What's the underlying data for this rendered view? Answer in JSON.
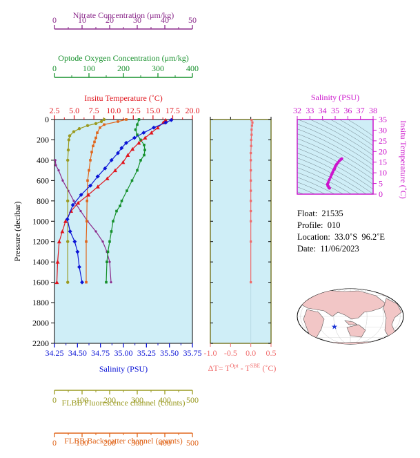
{
  "colors": {
    "nitrate": "#8b2a8b",
    "oxygen": "#15902b",
    "temperature": "#e0141c",
    "salinity": "#0b14d6",
    "fluorescence": "#9a9a20",
    "backscatter": "#e0661c",
    "ts_axis": "#cc14cc",
    "dt": "#f06b6b",
    "panel_bg": "#cfeef7",
    "map_land": "#f2c6c6",
    "map_ocean": "#ffffff"
  },
  "float_info": {
    "float": "Float:  21535",
    "profile": "Profile:  010",
    "location": "Location:  33.0˚S  96.2˚E",
    "date": "Date:  11/06/2023"
  },
  "chart_data": [
    {
      "type": "line",
      "panel": "profile",
      "ylabel": "Pressure (decibar)",
      "ylim": [
        2200,
        0
      ],
      "y_ticks": [
        "0",
        "200",
        "400",
        "600",
        "800",
        "1000",
        "1200",
        "1400",
        "1600",
        "1800",
        "2000",
        "2200"
      ],
      "y_tick_values": [
        0,
        200,
        400,
        600,
        800,
        1000,
        1200,
        1400,
        1600,
        1800,
        2000,
        2200
      ],
      "axes": [
        {
          "key": "nitrate",
          "label": "Nitrate Concentration (μm/kg)",
          "position": "top-1",
          "range": [
            0,
            50
          ],
          "ticks": [
            "0",
            "10",
            "20",
            "30",
            "40",
            "50"
          ],
          "tick_values": [
            0,
            10,
            20,
            30,
            40,
            50
          ]
        },
        {
          "key": "oxygen",
          "label": "Optode Oxygen Concentration (μm/kg)",
          "position": "top-2",
          "range": [
            0,
            400
          ],
          "ticks": [
            "0",
            "100",
            "200",
            "300",
            "400"
          ],
          "tick_values": [
            0,
            100,
            200,
            300,
            400
          ]
        },
        {
          "key": "temperature",
          "label": "Insitu Temperature (˚C)",
          "position": "top-3",
          "range": [
            2.5,
            20
          ],
          "ticks": [
            "2.5",
            "5.0",
            "7.5",
            "10.0",
            "12.5",
            "15.0",
            "17.5",
            "20.0"
          ],
          "tick_values": [
            2.5,
            5,
            7.5,
            10,
            12.5,
            15,
            17.5,
            20
          ]
        },
        {
          "key": "salinity",
          "label": "Salinity (PSU)",
          "position": "bottom-1",
          "range": [
            34.25,
            35.75
          ],
          "ticks": [
            "34.25",
            "34.50",
            "34.75",
            "35.00",
            "35.25",
            "35.50",
            "35.75"
          ],
          "tick_values": [
            34.25,
            34.5,
            34.75,
            35.0,
            35.25,
            35.5,
            35.75
          ]
        },
        {
          "key": "fluorescence",
          "label": "FLBB Fluorescence channel (counts)",
          "position": "bottom-2",
          "range": [
            0,
            500
          ],
          "ticks": [
            "0",
            "100",
            "200",
            "300",
            "400",
            "500"
          ],
          "tick_values": [
            0,
            100,
            200,
            300,
            400,
            500
          ]
        },
        {
          "key": "backscatter",
          "label": "FLBB Backscatter channel (counts)",
          "position": "bottom-3",
          "range": [
            0,
            500
          ],
          "ticks": [
            "0",
            "100",
            "200",
            "300",
            "400",
            "500"
          ],
          "tick_values": [
            0,
            100,
            200,
            300,
            400,
            500
          ]
        }
      ],
      "series": [
        {
          "key": "temperature",
          "marker": "triangle",
          "x": [
            16.6,
            16.3,
            15.6,
            14.8,
            14.0,
            13.2,
            12.4,
            11.8,
            11.2,
            10.2,
            9.2,
            8.0,
            6.8,
            5.5,
            4.6,
            3.9,
            3.5,
            3.1,
            2.9,
            2.8
          ],
          "y": [
            5,
            30,
            80,
            130,
            180,
            230,
            290,
            350,
            420,
            500,
            580,
            660,
            740,
            820,
            900,
            1000,
            1100,
            1200,
            1400,
            1600
          ]
        },
        {
          "key": "salinity",
          "marker": "diamond",
          "x": [
            35.52,
            35.46,
            35.33,
            35.22,
            35.12,
            35.03,
            34.98,
            34.94,
            34.87,
            34.8,
            34.72,
            34.64,
            34.54,
            34.45,
            34.39,
            34.42,
            34.47,
            34.5,
            34.52,
            34.55
          ],
          "y": [
            5,
            30,
            80,
            130,
            180,
            230,
            280,
            330,
            400,
            480,
            560,
            650,
            740,
            840,
            980,
            1100,
            1200,
            1300,
            1450,
            1600
          ]
        },
        {
          "key": "nitrate",
          "marker": "dot",
          "x": [
            0.3,
            0.5,
            1.5,
            3.0,
            5.0,
            7.0,
            9.5,
            12.0,
            15.0,
            17.5,
            19.0,
            20.0,
            20.5
          ],
          "y": [
            400,
            450,
            500,
            600,
            700,
            800,
            900,
            1000,
            1100,
            1200,
            1300,
            1400,
            1600
          ]
        },
        {
          "key": "oxygen",
          "marker": "square",
          "x": [
            245,
            240,
            235,
            240,
            250,
            260,
            262,
            260,
            250,
            240,
            225,
            210,
            195,
            190,
            180,
            170,
            165,
            160,
            155,
            152,
            150
          ],
          "y": [
            0,
            50,
            100,
            150,
            200,
            250,
            300,
            350,
            400,
            500,
            600,
            700,
            800,
            850,
            900,
            1000,
            1100,
            1200,
            1300,
            1400,
            1600
          ]
        },
        {
          "key": "fluorescence",
          "marker": "circle",
          "x": [
            180,
            170,
            150,
            120,
            90,
            70,
            55,
            52,
            50,
            48,
            48,
            48,
            48
          ],
          "y": [
            0,
            20,
            40,
            60,
            90,
            120,
            160,
            200,
            300,
            400,
            800,
            1200,
            1600
          ]
        },
        {
          "key": "backscatter",
          "marker": "square",
          "x": [
            260,
            230,
            180,
            165,
            155,
            150,
            145,
            140,
            135,
            130,
            125,
            120,
            118,
            117,
            115,
            115
          ],
          "y": [
            0,
            20,
            50,
            80,
            130,
            180,
            220,
            260,
            320,
            400,
            500,
            600,
            800,
            1000,
            1200,
            1600
          ]
        }
      ]
    },
    {
      "type": "line",
      "panel": "delta_t",
      "xlim": [
        -1.0,
        0.5
      ],
      "ticks": [
        "-1.0",
        "-0.5",
        "0.0",
        "0.5"
      ],
      "tick_values": [
        -1.0,
        -0.5,
        0.0,
        0.5
      ],
      "xlabel_parts": [
        "ΔT= T",
        "Opt",
        " - T",
        "SBE",
        " (˚C)"
      ],
      "series": [
        {
          "key": "dt",
          "x": [
            0.02,
            0.04,
            0.03,
            0.02,
            0.02,
            0.01,
            0.01,
            0.0,
            0.0,
            0.0,
            0.0,
            0.0,
            0.0,
            0.0,
            0.0,
            0.0,
            0.0
          ],
          "y": [
            5,
            30,
            60,
            100,
            150,
            200,
            260,
            330,
            400,
            500,
            600,
            700,
            800,
            900,
            1000,
            1200,
            1600
          ]
        }
      ]
    },
    {
      "type": "scatter",
      "panel": "ts_diagram",
      "title": "Salinity (PSU)",
      "xlim": [
        32,
        38
      ],
      "x_ticks": [
        "32",
        "33",
        "34",
        "35",
        "36",
        "37",
        "38"
      ],
      "x_tick_values": [
        32,
        33,
        34,
        35,
        36,
        37,
        38
      ],
      "ylabel": "Insitu Temperature (˚C)",
      "ylim": [
        0,
        35
      ],
      "y_ticks": [
        "0",
        "5",
        "10",
        "15",
        "20",
        "25",
        "30",
        "35"
      ],
      "y_tick_values": [
        0,
        5,
        10,
        15,
        20,
        25,
        30,
        35
      ],
      "series": [
        {
          "key": "ts",
          "x": [
            35.52,
            35.46,
            35.33,
            35.22,
            35.12,
            35.03,
            34.98,
            34.94,
            34.87,
            34.8,
            34.72,
            34.64,
            34.54,
            34.45,
            34.39,
            34.42,
            34.47,
            34.5,
            34.52,
            34.55
          ],
          "y": [
            16.6,
            16.3,
            15.6,
            14.8,
            14.0,
            13.2,
            12.4,
            11.8,
            11.2,
            10.2,
            9.2,
            8.0,
            6.8,
            5.5,
            4.6,
            3.9,
            3.5,
            3.1,
            2.9,
            2.8
          ]
        }
      ]
    },
    {
      "type": "scatter",
      "panel": "map",
      "points": [
        {
          "lon": 96.2,
          "lat": -33.0
        }
      ]
    }
  ]
}
